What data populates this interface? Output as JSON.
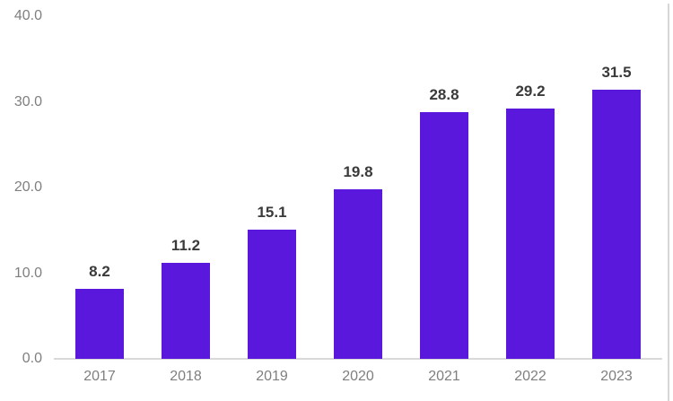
{
  "chart_data": {
    "type": "bar",
    "categories": [
      "2017",
      "2018",
      "2019",
      "2020",
      "2021",
      "2022",
      "2023"
    ],
    "values": [
      8.2,
      11.2,
      15.1,
      19.8,
      28.8,
      29.2,
      31.5
    ],
    "value_labels": [
      "8.2",
      "11.2",
      "15.1",
      "19.8",
      "28.8",
      "29.2",
      "31.5"
    ],
    "title": "",
    "xlabel": "",
    "ylabel": "",
    "ylim": [
      0,
      40
    ],
    "ytick_values": [
      0,
      10,
      20,
      30,
      40
    ],
    "ytick_labels": [
      "0.0",
      "10.0",
      "20.0",
      "30.0",
      "40.0"
    ],
    "grid": false,
    "legend_position": "none",
    "colors": {
      "bar": "#5A18DC",
      "axis_line": "#D9D9D9",
      "tick_label": "#7F7F7F",
      "data_label": "#3A3A3A",
      "background": "#FFFFFF",
      "right_border": "#D6D6D6"
    }
  }
}
